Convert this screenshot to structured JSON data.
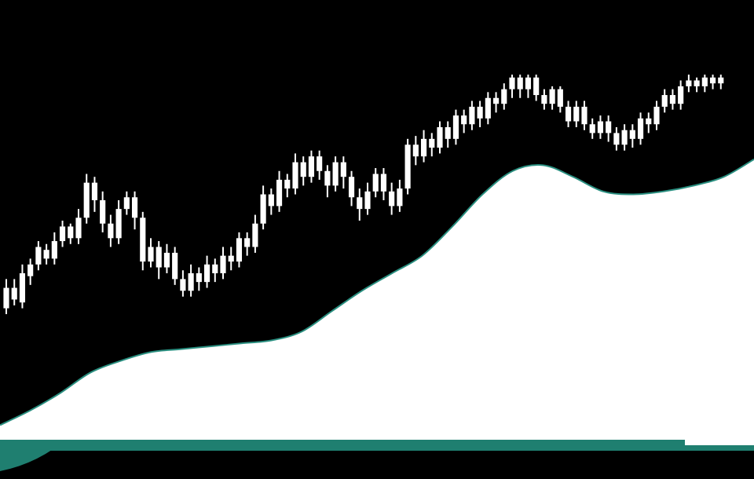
{
  "chart_data": {
    "type": "line",
    "title": "",
    "xlabel": "",
    "ylabel": "",
    "grid": false,
    "legend": "none",
    "colors": {
      "background": "#000000",
      "candles": "#ffffff",
      "area_fill": "#ffffff",
      "area_edge": "#2a8f80",
      "area_shadow": "#1f7f70"
    },
    "candles": [
      [
        0.45,
        0.52,
        0.43,
        0.55
      ],
      [
        0.52,
        0.48,
        0.46,
        0.55
      ],
      [
        0.47,
        0.57,
        0.45,
        0.6
      ],
      [
        0.56,
        0.6,
        0.53,
        0.62
      ],
      [
        0.6,
        0.66,
        0.58,
        0.68
      ],
      [
        0.65,
        0.62,
        0.6,
        0.67
      ],
      [
        0.62,
        0.68,
        0.6,
        0.71
      ],
      [
        0.68,
        0.73,
        0.66,
        0.75
      ],
      [
        0.73,
        0.69,
        0.67,
        0.74
      ],
      [
        0.69,
        0.76,
        0.67,
        0.79
      ],
      [
        0.76,
        0.88,
        0.74,
        0.91
      ],
      [
        0.88,
        0.82,
        0.78,
        0.9
      ],
      [
        0.82,
        0.74,
        0.71,
        0.85
      ],
      [
        0.74,
        0.69,
        0.66,
        0.77
      ],
      [
        0.69,
        0.79,
        0.67,
        0.82
      ],
      [
        0.79,
        0.83,
        0.77,
        0.85
      ],
      [
        0.83,
        0.76,
        0.72,
        0.85
      ],
      [
        0.76,
        0.61,
        0.58,
        0.78
      ],
      [
        0.61,
        0.66,
        0.59,
        0.69
      ],
      [
        0.66,
        0.59,
        0.55,
        0.68
      ],
      [
        0.59,
        0.64,
        0.57,
        0.67
      ],
      [
        0.64,
        0.55,
        0.53,
        0.66
      ],
      [
        0.55,
        0.51,
        0.49,
        0.58
      ],
      [
        0.51,
        0.57,
        0.49,
        0.6
      ],
      [
        0.57,
        0.54,
        0.51,
        0.59
      ],
      [
        0.54,
        0.6,
        0.52,
        0.63
      ],
      [
        0.6,
        0.57,
        0.54,
        0.62
      ],
      [
        0.57,
        0.63,
        0.55,
        0.66
      ],
      [
        0.63,
        0.61,
        0.58,
        0.66
      ],
      [
        0.61,
        0.69,
        0.59,
        0.71
      ],
      [
        0.69,
        0.66,
        0.63,
        0.71
      ],
      [
        0.66,
        0.74,
        0.64,
        0.77
      ],
      [
        0.74,
        0.84,
        0.72,
        0.87
      ],
      [
        0.84,
        0.8,
        0.77,
        0.86
      ],
      [
        0.8,
        0.89,
        0.78,
        0.92
      ],
      [
        0.89,
        0.86,
        0.83,
        0.91
      ],
      [
        0.86,
        0.95,
        0.84,
        0.98
      ],
      [
        0.95,
        0.9,
        0.87,
        0.97
      ],
      [
        0.9,
        0.97,
        0.88,
        0.99
      ],
      [
        0.97,
        0.92,
        0.89,
        0.99
      ],
      [
        0.92,
        0.87,
        0.83,
        0.94
      ],
      [
        0.87,
        0.95,
        0.85,
        0.97
      ],
      [
        0.95,
        0.9,
        0.86,
        0.97
      ],
      [
        0.9,
        0.83,
        0.8,
        0.92
      ],
      [
        0.83,
        0.79,
        0.75,
        0.86
      ],
      [
        0.79,
        0.85,
        0.77,
        0.88
      ],
      [
        0.85,
        0.91,
        0.83,
        0.93
      ],
      [
        0.91,
        0.85,
        0.82,
        0.93
      ],
      [
        0.85,
        0.8,
        0.77,
        0.88
      ],
      [
        0.8,
        0.86,
        0.78,
        0.89
      ],
      [
        0.86,
        1.01,
        0.84,
        1.03
      ],
      [
        1.01,
        0.97,
        0.94,
        1.04
      ],
      [
        0.97,
        1.03,
        0.95,
        1.06
      ],
      [
        1.03,
        1.0,
        0.97,
        1.05
      ],
      [
        1.0,
        1.07,
        0.98,
        1.09
      ],
      [
        1.07,
        1.03,
        1.0,
        1.09
      ],
      [
        1.03,
        1.11,
        1.01,
        1.13
      ],
      [
        1.11,
        1.08,
        1.05,
        1.13
      ],
      [
        1.08,
        1.14,
        1.06,
        1.16
      ],
      [
        1.14,
        1.1,
        1.07,
        1.16
      ],
      [
        1.1,
        1.17,
        1.08,
        1.19
      ],
      [
        1.17,
        1.15,
        1.12,
        1.19
      ],
      [
        1.15,
        1.2,
        1.13,
        1.22
      ],
      [
        1.2,
        1.24,
        1.17,
        1.25
      ],
      [
        1.24,
        1.2,
        1.17,
        1.25
      ],
      [
        1.2,
        1.24,
        1.17,
        1.25
      ],
      [
        1.24,
        1.18,
        1.16,
        1.25
      ],
      [
        1.18,
        1.15,
        1.13,
        1.2
      ],
      [
        1.15,
        1.2,
        1.13,
        1.21
      ],
      [
        1.2,
        1.14,
        1.12,
        1.21
      ],
      [
        1.14,
        1.09,
        1.07,
        1.16
      ],
      [
        1.09,
        1.14,
        1.07,
        1.16
      ],
      [
        1.14,
        1.08,
        1.06,
        1.16
      ],
      [
        1.08,
        1.05,
        1.03,
        1.1
      ],
      [
        1.05,
        1.09,
        1.03,
        1.11
      ],
      [
        1.09,
        1.05,
        1.02,
        1.11
      ],
      [
        1.05,
        1.01,
        0.99,
        1.07
      ],
      [
        1.01,
        1.06,
        0.99,
        1.08
      ],
      [
        1.06,
        1.03,
        1.0,
        1.08
      ],
      [
        1.03,
        1.1,
        1.01,
        1.12
      ],
      [
        1.1,
        1.08,
        1.05,
        1.12
      ],
      [
        1.08,
        1.14,
        1.06,
        1.16
      ],
      [
        1.14,
        1.18,
        1.12,
        1.2
      ],
      [
        1.18,
        1.15,
        1.13,
        1.2
      ],
      [
        1.15,
        1.21,
        1.13,
        1.23
      ],
      [
        1.21,
        1.23,
        1.19,
        1.25
      ],
      [
        1.23,
        1.21,
        1.19,
        1.24
      ],
      [
        1.21,
        1.24,
        1.19,
        1.25
      ],
      [
        1.24,
        1.22,
        1.2,
        1.25
      ],
      [
        1.22,
        1.24,
        1.2,
        1.25
      ]
    ],
    "area": [
      0.05,
      0.1,
      0.16,
      0.23,
      0.27,
      0.3,
      0.31,
      0.32,
      0.33,
      0.34,
      0.37,
      0.44,
      0.51,
      0.57,
      0.63,
      0.73,
      0.84,
      0.92,
      0.94,
      0.9,
      0.85,
      0.84,
      0.85,
      0.87,
      0.9,
      0.96
    ]
  }
}
